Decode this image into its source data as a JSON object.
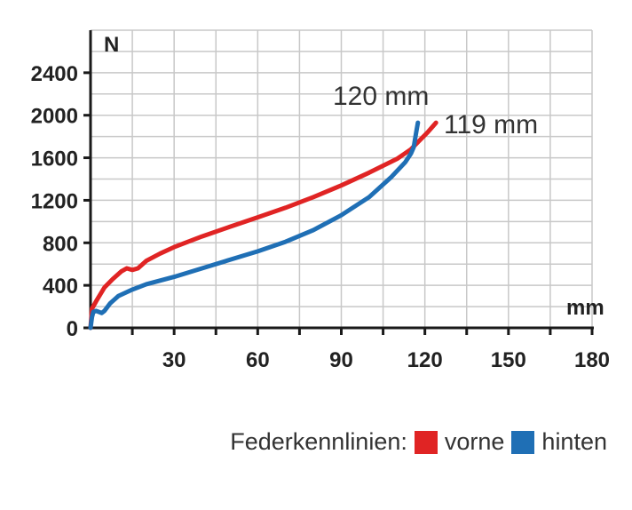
{
  "chart_data": {
    "type": "line",
    "xlabel": "mm",
    "ylabel": "N",
    "xlim": [
      0,
      180
    ],
    "ylim": [
      0,
      2800
    ],
    "x_ticks": [
      30,
      60,
      90,
      120,
      150,
      180
    ],
    "y_ticks": [
      0,
      400,
      800,
      1200,
      1600,
      2000,
      2400
    ],
    "grid": true,
    "legend_title": "Federkennlinien:",
    "series": [
      {
        "name": "vorne",
        "color": "#e02424",
        "points": [
          [
            0,
            0
          ],
          [
            0.5,
            180
          ],
          [
            2,
            250
          ],
          [
            5,
            380
          ],
          [
            8,
            460
          ],
          [
            11,
            530
          ],
          [
            13,
            560
          ],
          [
            15,
            545
          ],
          [
            17,
            560
          ],
          [
            20,
            630
          ],
          [
            25,
            700
          ],
          [
            30,
            760
          ],
          [
            40,
            860
          ],
          [
            50,
            950
          ],
          [
            60,
            1040
          ],
          [
            70,
            1130
          ],
          [
            80,
            1230
          ],
          [
            90,
            1340
          ],
          [
            100,
            1460
          ],
          [
            110,
            1590
          ],
          [
            115,
            1680
          ],
          [
            118,
            1760
          ],
          [
            121,
            1840
          ],
          [
            123,
            1900
          ],
          [
            124,
            1930
          ]
        ]
      },
      {
        "name": "hinten",
        "color": "#1f6fb5",
        "points": [
          [
            0,
            0
          ],
          [
            0.5,
            100
          ],
          [
            1,
            150
          ],
          [
            2,
            160
          ],
          [
            3,
            150
          ],
          [
            4,
            140
          ],
          [
            5,
            160
          ],
          [
            7,
            230
          ],
          [
            10,
            300
          ],
          [
            15,
            360
          ],
          [
            20,
            410
          ],
          [
            30,
            480
          ],
          [
            40,
            560
          ],
          [
            50,
            640
          ],
          [
            60,
            720
          ],
          [
            70,
            810
          ],
          [
            80,
            920
          ],
          [
            90,
            1060
          ],
          [
            100,
            1230
          ],
          [
            108,
            1420
          ],
          [
            113,
            1560
          ],
          [
            115,
            1640
          ],
          [
            116,
            1700
          ],
          [
            116.5,
            1780
          ],
          [
            117,
            1860
          ],
          [
            117.5,
            1930
          ]
        ]
      }
    ],
    "annotations": [
      {
        "text": "120 mm"
      },
      {
        "text": "119 mm"
      }
    ]
  }
}
